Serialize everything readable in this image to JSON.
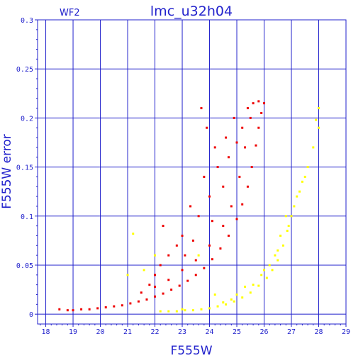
{
  "chart_data": {
    "type": "scatter",
    "title": "lmc_u32h04",
    "corner_label": "WF2",
    "xlabel": "F555W",
    "ylabel": "F555W error",
    "xlim": [
      17.7,
      29
    ],
    "ylim": [
      -0.01,
      0.3
    ],
    "xticks": [
      18,
      19,
      20,
      21,
      22,
      23,
      24,
      25,
      26,
      27,
      28,
      29
    ],
    "yticks": [
      0,
      0.05,
      0.1,
      0.15,
      0.2,
      0.25,
      0.3
    ],
    "ytick_labels": [
      "0",
      "0.05",
      "0.1",
      "0.15",
      "0.2",
      "0.25",
      "0.3"
    ],
    "grid": true,
    "colors": {
      "axis": "#2222cc",
      "grid": "#2222cc",
      "red": "#ee0000",
      "yellow": "#ffff00"
    },
    "series": [
      {
        "color": "red",
        "points": [
          [
            18.5,
            0.005
          ],
          [
            18.8,
            0.004
          ],
          [
            19.0,
            0.004
          ],
          [
            19.3,
            0.005
          ],
          [
            19.6,
            0.005
          ],
          [
            19.9,
            0.006
          ],
          [
            20.2,
            0.007
          ],
          [
            20.5,
            0.008
          ],
          [
            20.8,
            0.009
          ],
          [
            21.1,
            0.011
          ],
          [
            21.4,
            0.013
          ],
          [
            21.7,
            0.015
          ],
          [
            22.0,
            0.018
          ],
          [
            22.3,
            0.021
          ],
          [
            22.6,
            0.025
          ],
          [
            22.9,
            0.029
          ],
          [
            23.2,
            0.034
          ],
          [
            23.5,
            0.04
          ],
          [
            23.8,
            0.047
          ],
          [
            24.1,
            0.056
          ],
          [
            24.4,
            0.067
          ],
          [
            24.7,
            0.08
          ],
          [
            25.0,
            0.097
          ],
          [
            25.2,
            0.112
          ],
          [
            25.4,
            0.13
          ],
          [
            25.55,
            0.15
          ],
          [
            25.7,
            0.172
          ],
          [
            25.8,
            0.19
          ],
          [
            25.9,
            0.205
          ],
          [
            26.0,
            0.215
          ],
          [
            21.5,
            0.022
          ],
          [
            22.0,
            0.028
          ],
          [
            22.5,
            0.035
          ],
          [
            23.0,
            0.045
          ],
          [
            23.5,
            0.055
          ],
          [
            24.0,
            0.07
          ],
          [
            24.5,
            0.09
          ],
          [
            24.8,
            0.11
          ],
          [
            25.1,
            0.14
          ],
          [
            25.3,
            0.17
          ],
          [
            25.5,
            0.2
          ],
          [
            25.6,
            0.215
          ],
          [
            25.8,
            0.217
          ],
          [
            22.0,
            0.04
          ],
          [
            22.5,
            0.06
          ],
          [
            22.3,
            0.09
          ],
          [
            23.0,
            0.08
          ],
          [
            23.3,
            0.11
          ],
          [
            23.6,
            0.1
          ],
          [
            23.8,
            0.14
          ],
          [
            24.0,
            0.12
          ],
          [
            24.3,
            0.15
          ],
          [
            24.6,
            0.18
          ],
          [
            24.9,
            0.2
          ],
          [
            23.7,
            0.21
          ],
          [
            23.9,
            0.19
          ],
          [
            24.2,
            0.17
          ],
          [
            24.5,
            0.13
          ],
          [
            22.8,
            0.07
          ],
          [
            23.4,
            0.075
          ],
          [
            24.7,
            0.16
          ],
          [
            25.0,
            0.175
          ],
          [
            22.2,
            0.05
          ],
          [
            21.8,
            0.03
          ],
          [
            23.1,
            0.06
          ],
          [
            24.1,
            0.095
          ],
          [
            25.2,
            0.19
          ],
          [
            25.4,
            0.21
          ]
        ]
      },
      {
        "color": "yellow",
        "points": [
          [
            21.0,
            0.04
          ],
          [
            21.2,
            0.082
          ],
          [
            22.2,
            0.003
          ],
          [
            22.5,
            0.003
          ],
          [
            22.8,
            0.003
          ],
          [
            23.1,
            0.004
          ],
          [
            23.4,
            0.004
          ],
          [
            23.7,
            0.005
          ],
          [
            24.0,
            0.006
          ],
          [
            24.3,
            0.008
          ],
          [
            24.6,
            0.01
          ],
          [
            24.9,
            0.013
          ],
          [
            25.2,
            0.017
          ],
          [
            25.5,
            0.022
          ],
          [
            25.8,
            0.029
          ],
          [
            26.1,
            0.037
          ],
          [
            26.3,
            0.045
          ],
          [
            26.5,
            0.055
          ],
          [
            26.7,
            0.07
          ],
          [
            26.85,
            0.085
          ],
          [
            27.0,
            0.1
          ],
          [
            27.2,
            0.12
          ],
          [
            27.4,
            0.135
          ],
          [
            27.6,
            0.15
          ],
          [
            27.8,
            0.17
          ],
          [
            28.0,
            0.19
          ],
          [
            28.0,
            0.21
          ],
          [
            27.9,
            0.198
          ],
          [
            25.0,
            0.02
          ],
          [
            25.6,
            0.03
          ],
          [
            26.0,
            0.045
          ],
          [
            26.4,
            0.06
          ],
          [
            26.6,
            0.08
          ],
          [
            26.8,
            0.1
          ],
          [
            24.8,
            0.015
          ],
          [
            23.0,
            0.005
          ],
          [
            24.5,
            0.012
          ],
          [
            26.2,
            0.05
          ],
          [
            27.1,
            0.11
          ],
          [
            27.5,
            0.14
          ],
          [
            21.6,
            0.045
          ],
          [
            22.0,
            0.06
          ],
          [
            23.6,
            0.06
          ],
          [
            24.2,
            0.02
          ],
          [
            25.3,
            0.028
          ],
          [
            26.9,
            0.09
          ],
          [
            27.3,
            0.125
          ],
          [
            26.5,
            0.065
          ],
          [
            25.9,
            0.04
          ]
        ]
      }
    ]
  }
}
